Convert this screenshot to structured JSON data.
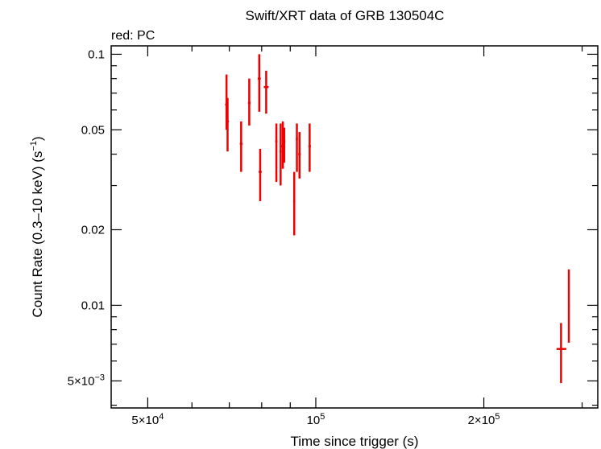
{
  "chart_data": {
    "type": "scatter",
    "title": "Swift/XRT data of GRB 130504C",
    "subtitle": "red: PC",
    "xlabel": "Time since trigger (s)",
    "ylabel": "Count Rate (0.3–10 keV) (s",
    "ylabel_sup": "−1",
    "ylabel_tail": ")",
    "x_scale": "log",
    "y_scale": "log",
    "xlim": [
      43000,
      320000
    ],
    "ylim": [
      0.0039,
      0.108
    ],
    "grid": false,
    "series_color": "#ee0000",
    "x_ticks": [
      {
        "value": 50000,
        "mant": "5×10",
        "exp": "4"
      },
      {
        "value": 100000,
        "mant": "10",
        "exp": "5"
      },
      {
        "value": 200000,
        "mant": "2×10",
        "exp": "5"
      }
    ],
    "y_ticks": [
      {
        "value": 0.1,
        "label": "0.1"
      },
      {
        "value": 0.05,
        "label": "0.05"
      },
      {
        "value": 0.02,
        "label": "0.02"
      },
      {
        "value": 0.01,
        "label": "0.01"
      },
      {
        "value": 0.005,
        "mant": "5×10",
        "exp": "−3"
      }
    ],
    "points": [
      {
        "x": 69500,
        "xlo": 69100,
        "xhi": 69900,
        "y": 0.054,
        "ylo": 0.041,
        "yhi": 0.067
      },
      {
        "x": 69200,
        "xlo": 68800,
        "xhi": 69600,
        "y": 0.063,
        "ylo": 0.05,
        "yhi": 0.083
      },
      {
        "x": 73500,
        "xlo": 73100,
        "xhi": 73900,
        "y": 0.044,
        "ylo": 0.034,
        "yhi": 0.054
      },
      {
        "x": 76000,
        "xlo": 75600,
        "xhi": 76400,
        "y": 0.064,
        "ylo": 0.052,
        "yhi": 0.08
      },
      {
        "x": 79200,
        "xlo": 78700,
        "xhi": 79700,
        "y": 0.08,
        "ylo": 0.059,
        "yhi": 0.1
      },
      {
        "x": 79500,
        "xlo": 79000,
        "xhi": 80000,
        "y": 0.034,
        "ylo": 0.026,
        "yhi": 0.042
      },
      {
        "x": 81500,
        "xlo": 80700,
        "xhi": 82300,
        "y": 0.074,
        "ylo": 0.058,
        "yhi": 0.086
      },
      {
        "x": 85000,
        "xlo": 84600,
        "xhi": 85400,
        "y": 0.045,
        "ylo": 0.031,
        "yhi": 0.053
      },
      {
        "x": 86500,
        "xlo": 86100,
        "xhi": 86900,
        "y": 0.041,
        "ylo": 0.03,
        "yhi": 0.053
      },
      {
        "x": 87300,
        "xlo": 86500,
        "xhi": 88100,
        "y": 0.043,
        "ylo": 0.035,
        "yhi": 0.054
      },
      {
        "x": 87800,
        "xlo": 87400,
        "xhi": 88200,
        "y": 0.045,
        "ylo": 0.037,
        "yhi": 0.051
      },
      {
        "x": 91500,
        "xlo": 91100,
        "xhi": 91900,
        "y": 0.026,
        "ylo": 0.019,
        "yhi": 0.034
      },
      {
        "x": 92500,
        "xlo": 92100,
        "xhi": 92900,
        "y": 0.046,
        "ylo": 0.034,
        "yhi": 0.053
      },
      {
        "x": 93500,
        "xlo": 93000,
        "xhi": 94000,
        "y": 0.04,
        "ylo": 0.032,
        "yhi": 0.049
      },
      {
        "x": 97500,
        "xlo": 97000,
        "xhi": 98000,
        "y": 0.043,
        "ylo": 0.034,
        "yhi": 0.053
      },
      {
        "x": 275000,
        "xlo": 270000,
        "xhi": 281000,
        "y": 0.0067,
        "ylo": 0.0049,
        "yhi": 0.0085
      },
      {
        "x": 284000,
        "xlo": 283000,
        "xhi": 285000,
        "y": 0.01,
        "ylo": 0.0071,
        "yhi": 0.0139
      }
    ]
  }
}
